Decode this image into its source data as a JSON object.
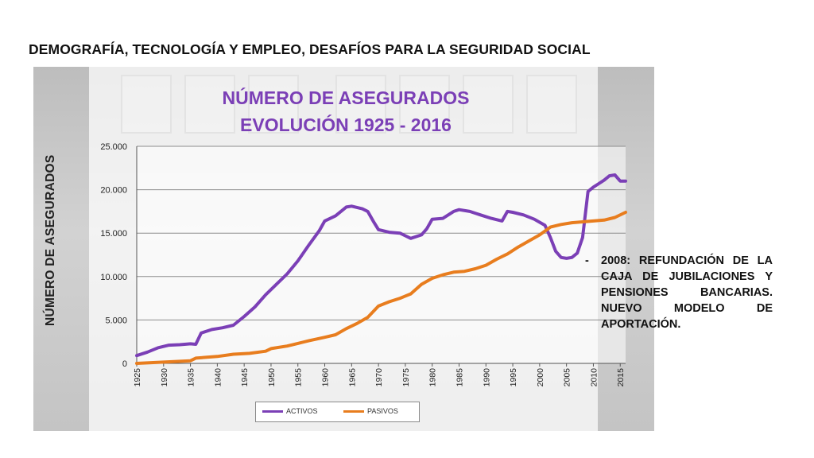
{
  "slide_title": "DEMOGRAFÍA, TECNOLOGÍA Y EMPLEO, DESAFÍOS PARA LA SEGURIDAD SOCIAL",
  "chart_title_line1": "NÚMERO DE ASEGURADOS",
  "chart_title_line2": "EVOLUCIÓN 1925 - 2016",
  "note": {
    "bullet": "-",
    "text": "2008: REFUNDACIÓN DE LA CAJA DE JUBILACIONES Y PENSIONES BANCARIAS. NUEVO MODELO DE APORTACIÓN."
  },
  "chart_data": {
    "type": "line",
    "title": "NÚMERO DE ASEGURADOS EVOLUCIÓN 1925 - 2016",
    "xlabel": "",
    "ylabel": "NÚMERO DE ASEGURADOS",
    "xlim": [
      1925,
      2016
    ],
    "ylim": [
      0,
      25000
    ],
    "grid": true,
    "legend_position": "bottom",
    "x_ticks": [
      "1925",
      "1930",
      "1935",
      "1940",
      "1945",
      "1950",
      "1955",
      "1960",
      "1965",
      "1970",
      "1975",
      "1980",
      "1985",
      "1990",
      "1995",
      "2000",
      "2005",
      "2010",
      "2015"
    ],
    "y_ticks": [
      "0",
      "5.000",
      "10.000",
      "15.000",
      "20.000",
      "25.000"
    ],
    "series": [
      {
        "name": "ACTIVOS",
        "color": "#7b3fb6",
        "points": [
          [
            1925,
            900
          ],
          [
            1927,
            1300
          ],
          [
            1929,
            1800
          ],
          [
            1931,
            2100
          ],
          [
            1933,
            2150
          ],
          [
            1935,
            2250
          ],
          [
            1936,
            2200
          ],
          [
            1937,
            3500
          ],
          [
            1939,
            3900
          ],
          [
            1941,
            4100
          ],
          [
            1943,
            4400
          ],
          [
            1945,
            5400
          ],
          [
            1947,
            6500
          ],
          [
            1949,
            7900
          ],
          [
            1951,
            9100
          ],
          [
            1953,
            10300
          ],
          [
            1955,
            11800
          ],
          [
            1957,
            13600
          ],
          [
            1959,
            15300
          ],
          [
            1960,
            16400
          ],
          [
            1962,
            17000
          ],
          [
            1964,
            18000
          ],
          [
            1965,
            18100
          ],
          [
            1967,
            17800
          ],
          [
            1968,
            17500
          ],
          [
            1969,
            16400
          ],
          [
            1970,
            15400
          ],
          [
            1972,
            15100
          ],
          [
            1974,
            15000
          ],
          [
            1975,
            14700
          ],
          [
            1976,
            14400
          ],
          [
            1978,
            14800
          ],
          [
            1979,
            15500
          ],
          [
            1980,
            16600
          ],
          [
            1982,
            16700
          ],
          [
            1984,
            17500
          ],
          [
            1985,
            17700
          ],
          [
            1987,
            17500
          ],
          [
            1988,
            17300
          ],
          [
            1989,
            17100
          ],
          [
            1991,
            16700
          ],
          [
            1993,
            16400
          ],
          [
            1994,
            17500
          ],
          [
            1995,
            17400
          ],
          [
            1997,
            17100
          ],
          [
            1999,
            16600
          ],
          [
            2001,
            15900
          ],
          [
            2002,
            14500
          ],
          [
            2003,
            12900
          ],
          [
            2004,
            12200
          ],
          [
            2005,
            12100
          ],
          [
            2006,
            12200
          ],
          [
            2007,
            12700
          ],
          [
            2008,
            14500
          ],
          [
            2009,
            19800
          ],
          [
            2010,
            20300
          ],
          [
            2011,
            20700
          ],
          [
            2012,
            21100
          ],
          [
            2013,
            21600
          ],
          [
            2014,
            21700
          ],
          [
            2015,
            21000
          ],
          [
            2016,
            21000
          ]
        ]
      },
      {
        "name": "PASIVOS",
        "color": "#e87d1e",
        "points": [
          [
            1925,
            0
          ],
          [
            1930,
            150
          ],
          [
            1935,
            300
          ],
          [
            1936,
            600
          ],
          [
            1940,
            800
          ],
          [
            1943,
            1050
          ],
          [
            1946,
            1150
          ],
          [
            1949,
            1400
          ],
          [
            1950,
            1700
          ],
          [
            1953,
            2000
          ],
          [
            1955,
            2300
          ],
          [
            1957,
            2600
          ],
          [
            1960,
            3000
          ],
          [
            1962,
            3300
          ],
          [
            1964,
            4000
          ],
          [
            1966,
            4600
          ],
          [
            1968,
            5300
          ],
          [
            1970,
            6600
          ],
          [
            1972,
            7100
          ],
          [
            1974,
            7500
          ],
          [
            1976,
            8000
          ],
          [
            1978,
            9100
          ],
          [
            1980,
            9800
          ],
          [
            1982,
            10200
          ],
          [
            1984,
            10500
          ],
          [
            1986,
            10600
          ],
          [
            1988,
            10900
          ],
          [
            1990,
            11300
          ],
          [
            1992,
            12000
          ],
          [
            1994,
            12600
          ],
          [
            1996,
            13400
          ],
          [
            1998,
            14100
          ],
          [
            2000,
            14800
          ],
          [
            2002,
            15700
          ],
          [
            2004,
            16000
          ],
          [
            2006,
            16200
          ],
          [
            2008,
            16300
          ],
          [
            2010,
            16400
          ],
          [
            2012,
            16500
          ],
          [
            2014,
            16800
          ],
          [
            2016,
            17400
          ]
        ]
      }
    ]
  }
}
